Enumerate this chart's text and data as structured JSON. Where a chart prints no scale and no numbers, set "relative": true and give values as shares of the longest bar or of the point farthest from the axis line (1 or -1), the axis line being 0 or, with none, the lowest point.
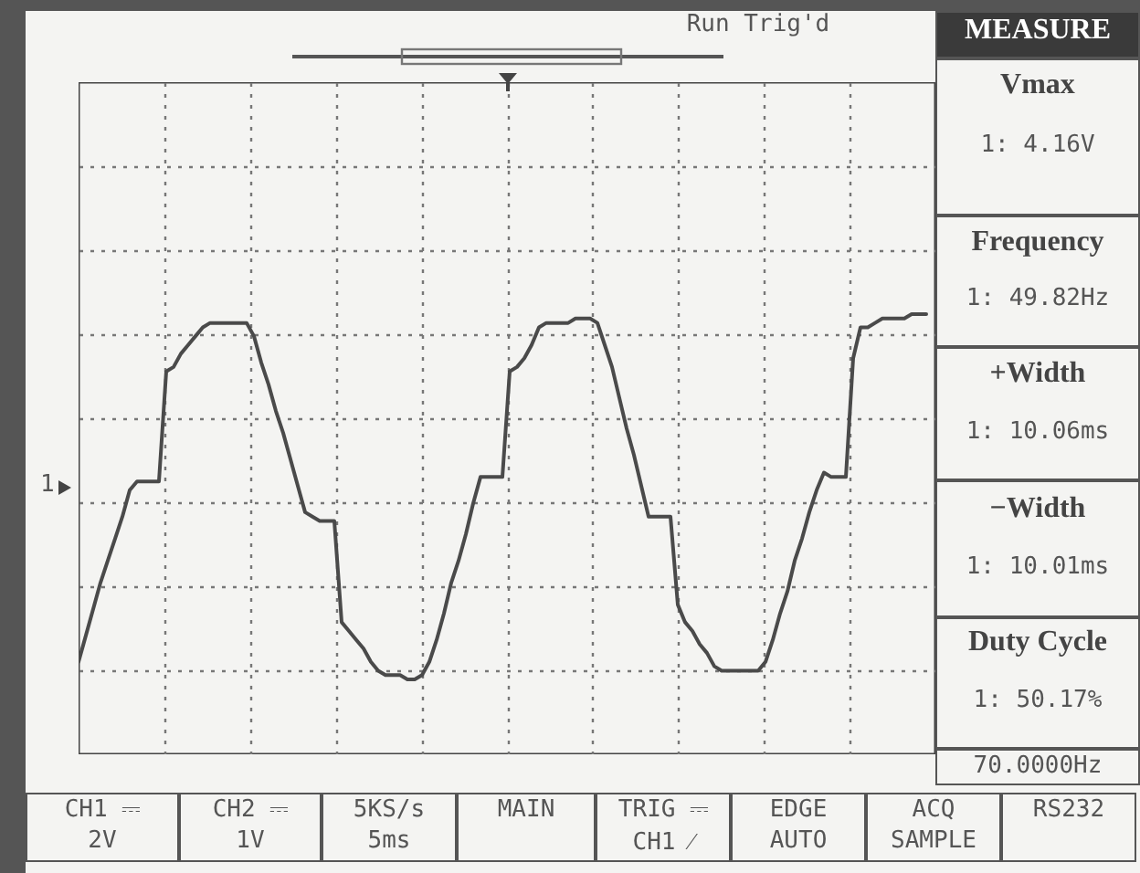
{
  "chart_data": {
    "type": "line",
    "relative": true,
    "grid": true,
    "marker": "none",
    "line_style": "solid",
    "categories": [
      null,
      null,
      null,
      null,
      null,
      null,
      null,
      null,
      null,
      null,
      null,
      null,
      null,
      null,
      null,
      null,
      null,
      null,
      null,
      null,
      null,
      null,
      null,
      null,
      null,
      null,
      null,
      null,
      null,
      null,
      null,
      null,
      null,
      null,
      null,
      null,
      null,
      null,
      null,
      null,
      null,
      null,
      null,
      null,
      null,
      null,
      null,
      null,
      null,
      null,
      null,
      null,
      null,
      null,
      null,
      null,
      null,
      null,
      null,
      null,
      null,
      null,
      null,
      null,
      null,
      null,
      null,
      null,
      null,
      null,
      null,
      null,
      null,
      null,
      null,
      null,
      null,
      null,
      null,
      null,
      null,
      null,
      null,
      null,
      null,
      null,
      null,
      null,
      null,
      null,
      null,
      null,
      null,
      null,
      null,
      null,
      null,
      null,
      null,
      null,
      null,
      null,
      null,
      null,
      null,
      null,
      null,
      null,
      null,
      null,
      null,
      null,
      null,
      null,
      null,
      null,
      null
    ],
    "series": [
      {
        "color": "#4a4a4a",
        "values": [
          0.21,
          0.27,
          0.33,
          0.39,
          0.44,
          0.49,
          0.54,
          0.6,
          0.62,
          0.62,
          0.62,
          0.62,
          0.87,
          0.88,
          0.91,
          0.93,
          0.95,
          0.97,
          0.98,
          0.98,
          0.98,
          0.98,
          0.98,
          0.98,
          0.95,
          0.89,
          0.84,
          0.78,
          0.73,
          0.67,
          0.61,
          0.55,
          0.54,
          0.53,
          0.53,
          0.53,
          0.3,
          0.28,
          0.26,
          0.24,
          0.21,
          0.19,
          0.18,
          0.18,
          0.18,
          0.17,
          0.17,
          0.18,
          0.21,
          0.26,
          0.32,
          0.39,
          0.44,
          0.5,
          0.57,
          0.63,
          0.63,
          0.63,
          0.63,
          0.87,
          0.88,
          0.9,
          0.93,
          0.97,
          0.98,
          0.98,
          0.98,
          0.98,
          0.99,
          0.99,
          0.99,
          0.98,
          0.93,
          0.88,
          0.81,
          0.74,
          0.68,
          0.61,
          0.54,
          0.54,
          0.54,
          0.54,
          0.34,
          0.3,
          0.28,
          0.25,
          0.23,
          0.2,
          0.19,
          0.19,
          0.19,
          0.19,
          0.19,
          0.19,
          0.21,
          0.26,
          0.32,
          0.37,
          0.44,
          0.49,
          0.55,
          0.6,
          0.64,
          0.63,
          0.63,
          0.63,
          0.9,
          0.97,
          0.97,
          0.98,
          0.99,
          0.99,
          0.99,
          0.99,
          1,
          1,
          1
        ]
      }
    ],
    "annotations": [
      "Run Trig'd",
      "MEASURE",
      "Vmax",
      "1: 4.16V",
      "Frequency",
      "1: 49.82Hz",
      "+Width",
      "1: 10.06ms",
      "−Width",
      "1: 10.01ms",
      "Duty Cycle",
      "1: 50.17%",
      "70.0000Hz",
      "CH1 ⎓",
      "2V",
      "CH2 ⎓",
      "1V",
      "5KS/s",
      "5ms",
      "MAIN",
      "TRIG ⎓",
      "CH1 ⁄",
      "EDGE",
      "AUTO",
      "ACQ",
      "SAMPLE",
      "RS232",
      "1"
    ]
  }
}
